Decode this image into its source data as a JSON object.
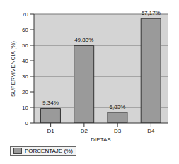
{
  "chart_data": {
    "type": "bar",
    "categories": [
      "D1",
      "D2",
      "D3",
      "D4"
    ],
    "series": [
      {
        "name": "PORCENTAJE (%)",
        "color": "#9a9a9a",
        "values": [
          9.34,
          49.83,
          6.83,
          67.17
        ],
        "value_labels": [
          "9,34%",
          "49,83%",
          "6,83%",
          "67,17%"
        ]
      }
    ],
    "xlabel": "DIETAS",
    "ylabel": "SUPERVIVENCIA (%)",
    "ylim": [
      0,
      70
    ],
    "yticks": [
      0,
      10,
      20,
      30,
      40,
      50,
      60,
      70
    ],
    "grid": true,
    "data_labels": true,
    "legend": "lower left"
  }
}
